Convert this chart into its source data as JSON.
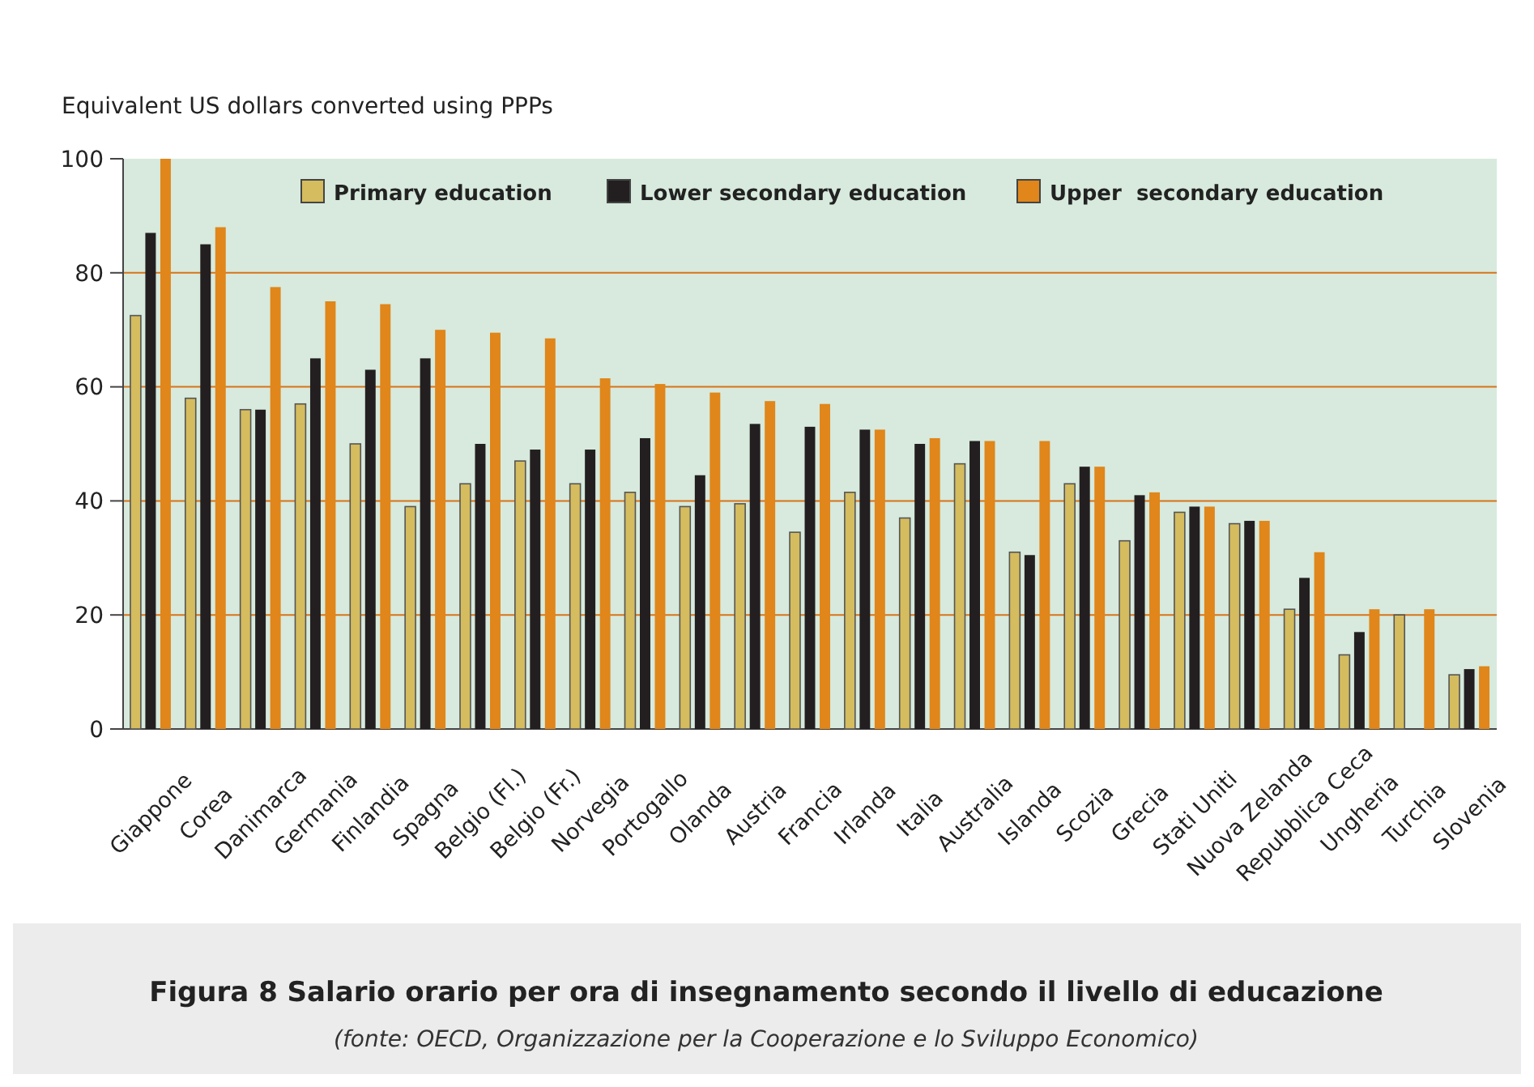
{
  "chart_data": {
    "type": "bar",
    "title": "Figura 8 Salario orario per ora di insegnamento secondo il livello di educazione",
    "annotations": [
      "(fonte: OECD, Organizzazione per la Cooperazione e lo Sviluppo Economico)"
    ],
    "ylabel": "Equivalent US dollars converted using PPPs",
    "categories": [
      "Giappone",
      "Corea",
      "Danimarca",
      "Germania",
      "Finlandia",
      "Spagna",
      "Belgio (Fl.)",
      "Belgio (Fr.)",
      "Norvegia",
      "Portogallo",
      "Olanda",
      "Austria",
      "Francia",
      "Irlanda",
      "Italia",
      "Australia",
      "Islanda",
      "Scozia",
      "Grecia",
      "Stati Uniti",
      "Nuova Zelanda",
      "Repubblica Ceca",
      "Ungheria",
      "Turchia",
      "Slovenia"
    ],
    "series": [
      {
        "name": "Primary education",
        "color": "#d4bc5f",
        "values": [
          72.5,
          58,
          56,
          57,
          50,
          39,
          43,
          47,
          43,
          41.5,
          39,
          39.5,
          34.5,
          41.5,
          37,
          46.5,
          31,
          43,
          33,
          38,
          36,
          21,
          13,
          20,
          9.5
        ]
      },
      {
        "name": "Lower secondary education",
        "color": "#231f20",
        "values": [
          87,
          85,
          56,
          65,
          63,
          65,
          50,
          49,
          49,
          51,
          44.5,
          53.5,
          53,
          52.5,
          50,
          50.5,
          30.5,
          46,
          41,
          39,
          36.5,
          26.5,
          17,
          null,
          10.5
        ]
      },
      {
        "name": "Upper  secondary education",
        "color": "#e0861a",
        "values": [
          100,
          88,
          77.5,
          75,
          74.5,
          70,
          69.5,
          68.5,
          61.5,
          60.5,
          59,
          57.5,
          57,
          52.5,
          51,
          50.5,
          50.5,
          46,
          41.5,
          39,
          36.5,
          31,
          21,
          21,
          11
        ]
      }
    ],
    "ylim": [
      0,
      100
    ],
    "yticks": [
      0,
      20,
      40,
      60,
      80,
      100
    ],
    "grid": "y",
    "legend": "top"
  }
}
